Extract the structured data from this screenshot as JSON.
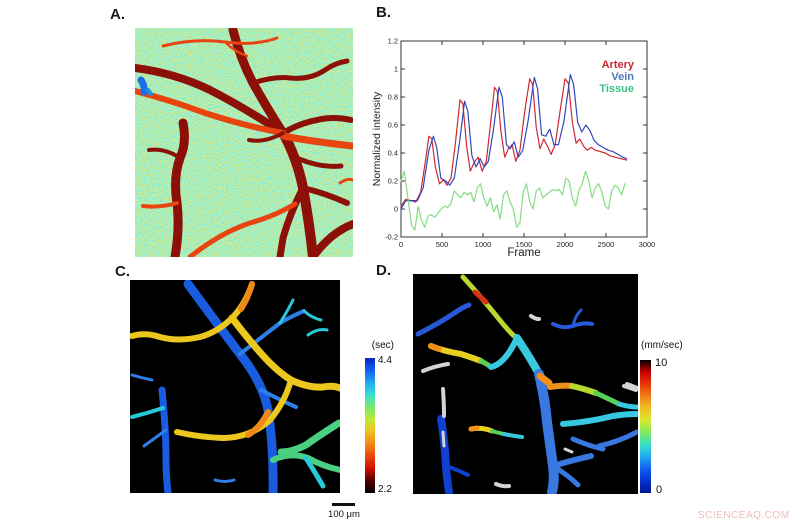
{
  "figure": {
    "background": "#ffffff",
    "watermark": "SCIENCEAQ.COM"
  },
  "panels": {
    "a": {
      "label": "A."
    },
    "b": {
      "label": "B."
    },
    "c": {
      "label": "C.",
      "colorbar_unit": "(sec)",
      "colorbar_max": "4.4",
      "colorbar_min": "2.2",
      "colorbar_colors_top_to_bottom": [
        "#0828c8",
        "#1060f0",
        "#20a8f0",
        "#38e0d0",
        "#78e868",
        "#c0e838",
        "#f0c020",
        "#f08818",
        "#e84808",
        "#d01000",
        "#500000",
        "#000000"
      ]
    },
    "d": {
      "label": "D.",
      "colorbar_unit": "(mm/sec)",
      "colorbar_max": "10",
      "colorbar_min": "0",
      "colorbar_colors_top_to_bottom": [
        "#000000",
        "#c80000",
        "#e83808",
        "#f08018",
        "#f0c020",
        "#d8e830",
        "#80e860",
        "#38e0c8",
        "#20a8f0",
        "#1060f0",
        "#0830d0",
        "#001890"
      ]
    }
  },
  "scale_bar": {
    "label": "100 μm"
  },
  "chart_data": {
    "type": "line",
    "xlabel": "Frame",
    "ylabel": "Normalized intensity",
    "xlim": [
      0,
      3000
    ],
    "ylim": [
      -0.2,
      1.2
    ],
    "xticks": [
      0,
      500,
      1000,
      1500,
      2000,
      2500,
      3000
    ],
    "yticks": [
      -0.2,
      0,
      0.2,
      0.4,
      0.6,
      0.8,
      1,
      1.2
    ],
    "grid": false,
    "legend_position": "top-right",
    "series": [
      {
        "name": "Artery",
        "color": "#d02830",
        "label_color": "#c82836",
        "points": [
          [
            0,
            0.02
          ],
          [
            60,
            0.07
          ],
          [
            120,
            0.06
          ],
          [
            180,
            0.05
          ],
          [
            240,
            0.12
          ],
          [
            300,
            0.35
          ],
          [
            340,
            0.52
          ],
          [
            375,
            0.5
          ],
          [
            420,
            0.3
          ],
          [
            470,
            0.18
          ],
          [
            520,
            0.21
          ],
          [
            560,
            0.17
          ],
          [
            610,
            0.22
          ],
          [
            660,
            0.45
          ],
          [
            720,
            0.78
          ],
          [
            755,
            0.75
          ],
          [
            800,
            0.45
          ],
          [
            845,
            0.27
          ],
          [
            890,
            0.33
          ],
          [
            940,
            0.37
          ],
          [
            990,
            0.27
          ],
          [
            1040,
            0.34
          ],
          [
            1090,
            0.6
          ],
          [
            1140,
            0.87
          ],
          [
            1175,
            0.84
          ],
          [
            1220,
            0.55
          ],
          [
            1265,
            0.37
          ],
          [
            1310,
            0.43
          ],
          [
            1355,
            0.46
          ],
          [
            1400,
            0.34
          ],
          [
            1450,
            0.42
          ],
          [
            1510,
            0.7
          ],
          [
            1570,
            0.93
          ],
          [
            1605,
            0.89
          ],
          [
            1650,
            0.58
          ],
          [
            1695,
            0.43
          ],
          [
            1740,
            0.5
          ],
          [
            1785,
            0.45
          ],
          [
            1830,
            0.39
          ],
          [
            1880,
            0.46
          ],
          [
            1940,
            0.7
          ],
          [
            2000,
            0.93
          ],
          [
            2040,
            0.9
          ],
          [
            2090,
            0.62
          ],
          [
            2135,
            0.47
          ],
          [
            2180,
            0.5
          ],
          [
            2225,
            0.45
          ],
          [
            2270,
            0.42
          ],
          [
            2320,
            0.44
          ],
          [
            2370,
            0.42
          ],
          [
            2430,
            0.41
          ],
          [
            2490,
            0.4
          ],
          [
            2550,
            0.38
          ],
          [
            2610,
            0.37
          ],
          [
            2680,
            0.36
          ],
          [
            2750,
            0.35
          ]
        ]
      },
      {
        "name": "Vein",
        "color": "#3448bc",
        "label_color": "#4c78b4",
        "points": [
          [
            0,
            0.0
          ],
          [
            60,
            0.06
          ],
          [
            130,
            0.06
          ],
          [
            200,
            0.06
          ],
          [
            270,
            0.15
          ],
          [
            340,
            0.42
          ],
          [
            395,
            0.52
          ],
          [
            435,
            0.44
          ],
          [
            485,
            0.22
          ],
          [
            545,
            0.2
          ],
          [
            595,
            0.17
          ],
          [
            650,
            0.22
          ],
          [
            715,
            0.48
          ],
          [
            775,
            0.77
          ],
          [
            815,
            0.7
          ],
          [
            865,
            0.38
          ],
          [
            915,
            0.3
          ],
          [
            965,
            0.36
          ],
          [
            1015,
            0.3
          ],
          [
            1065,
            0.34
          ],
          [
            1125,
            0.56
          ],
          [
            1195,
            0.87
          ],
          [
            1235,
            0.8
          ],
          [
            1285,
            0.46
          ],
          [
            1330,
            0.43
          ],
          [
            1380,
            0.48
          ],
          [
            1430,
            0.37
          ],
          [
            1485,
            0.42
          ],
          [
            1550,
            0.63
          ],
          [
            1625,
            0.94
          ],
          [
            1665,
            0.86
          ],
          [
            1715,
            0.53
          ],
          [
            1765,
            0.52
          ],
          [
            1815,
            0.57
          ],
          [
            1865,
            0.46
          ],
          [
            1920,
            0.46
          ],
          [
            1985,
            0.62
          ],
          [
            2065,
            0.96
          ],
          [
            2105,
            0.89
          ],
          [
            2155,
            0.62
          ],
          [
            2205,
            0.55
          ],
          [
            2255,
            0.6
          ],
          [
            2305,
            0.56
          ],
          [
            2355,
            0.49
          ],
          [
            2405,
            0.46
          ],
          [
            2465,
            0.44
          ],
          [
            2525,
            0.42
          ],
          [
            2585,
            0.41
          ],
          [
            2645,
            0.39
          ],
          [
            2705,
            0.37
          ],
          [
            2750,
            0.36
          ]
        ]
      },
      {
        "name": "Tissue",
        "color": "#84dc84",
        "label_color": "#3cc084",
        "points": [
          [
            0,
            0.2
          ],
          [
            40,
            0.27
          ],
          [
            90,
            0.05
          ],
          [
            130,
            -0.12
          ],
          [
            170,
            -0.15
          ],
          [
            210,
            0.02
          ],
          [
            250,
            -0.08
          ],
          [
            290,
            -0.13
          ],
          [
            330,
            -0.05
          ],
          [
            370,
            -0.04
          ],
          [
            410,
            -0.06
          ],
          [
            450,
            -0.03
          ],
          [
            490,
            0.0
          ],
          [
            530,
            0.02
          ],
          [
            570,
            0.01
          ],
          [
            610,
            0.04
          ],
          [
            650,
            0.13
          ],
          [
            690,
            0.1
          ],
          [
            730,
            0.08
          ],
          [
            770,
            0.12
          ],
          [
            810,
            0.1
          ],
          [
            850,
            0.12
          ],
          [
            890,
            0.05
          ],
          [
            930,
            0.15
          ],
          [
            970,
            0.18
          ],
          [
            1010,
            0.08
          ],
          [
            1050,
            0.02
          ],
          [
            1090,
            0.08
          ],
          [
            1130,
            -0.02
          ],
          [
            1170,
            0.03
          ],
          [
            1210,
            -0.07
          ],
          [
            1250,
            0.1
          ],
          [
            1290,
            0.13
          ],
          [
            1330,
            0.05
          ],
          [
            1370,
            0.0
          ],
          [
            1410,
            -0.13
          ],
          [
            1450,
            -0.1
          ],
          [
            1490,
            0.12
          ],
          [
            1530,
            0.18
          ],
          [
            1570,
            0.05
          ],
          [
            1610,
            0.0
          ],
          [
            1650,
            0.13
          ],
          [
            1690,
            0.15
          ],
          [
            1730,
            0.08
          ],
          [
            1770,
            0.1
          ],
          [
            1810,
            0.12
          ],
          [
            1850,
            0.14
          ],
          [
            1890,
            0.13
          ],
          [
            1930,
            0.14
          ],
          [
            1970,
            0.1
          ],
          [
            2010,
            0.22
          ],
          [
            2050,
            0.2
          ],
          [
            2090,
            0.08
          ],
          [
            2130,
            0.02
          ],
          [
            2170,
            0.13
          ],
          [
            2210,
            0.18
          ],
          [
            2250,
            0.27
          ],
          [
            2290,
            0.2
          ],
          [
            2330,
            0.08
          ],
          [
            2370,
            0.15
          ],
          [
            2410,
            0.18
          ],
          [
            2450,
            0.12
          ],
          [
            2490,
            0.02
          ],
          [
            2530,
            0.0
          ],
          [
            2570,
            0.13
          ],
          [
            2610,
            0.17
          ],
          [
            2650,
            0.15
          ],
          [
            2690,
            0.1
          ],
          [
            2730,
            0.18
          ]
        ]
      }
    ]
  }
}
